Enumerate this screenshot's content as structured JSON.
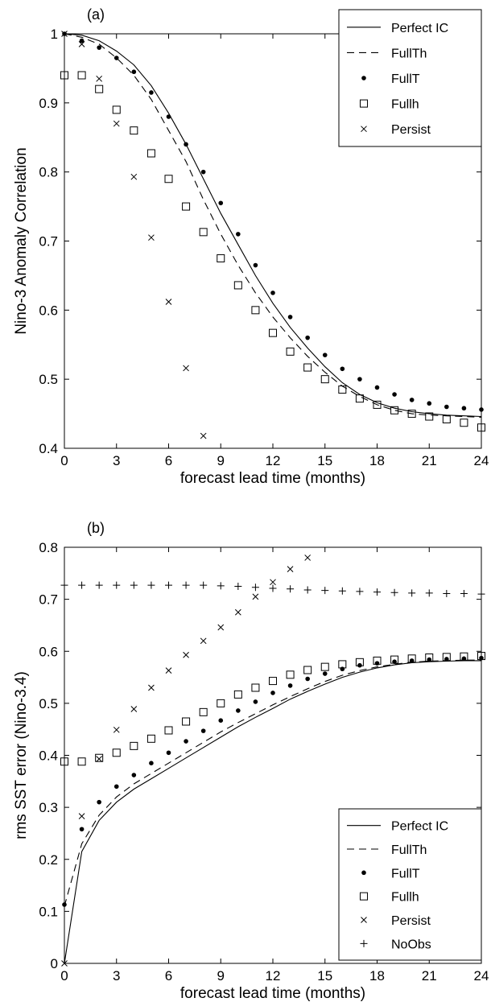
{
  "chart_data": [
    {
      "type": "line",
      "panel_label": "(a)",
      "xlabel": "forecast lead time (months)",
      "ylabel": "Nino-3 Anomaly Correlation",
      "xlim": [
        0,
        24
      ],
      "ylim": [
        0.4,
        1.0
      ],
      "xticks": [
        "0",
        "3",
        "6",
        "9",
        "12",
        "15",
        "18",
        "21",
        "24"
      ],
      "yticks": [
        "0.4",
        "0.5",
        "0.6",
        "0.7",
        "0.8",
        "0.9",
        "1"
      ],
      "grid": false,
      "legend_position": "top-right",
      "x": [
        0,
        1,
        2,
        3,
        4,
        5,
        6,
        7,
        8,
        9,
        10,
        11,
        12,
        13,
        14,
        15,
        16,
        17,
        18,
        19,
        20,
        21,
        22,
        23,
        24
      ],
      "series": [
        {
          "name": "Perfect IC",
          "style": "solid-line",
          "x": [
            0,
            1,
            2,
            3,
            4,
            5,
            6,
            7,
            8,
            9,
            10,
            11,
            12,
            13,
            14,
            15,
            16,
            17,
            18,
            19,
            20,
            21,
            22,
            23,
            24
          ],
          "values": [
            1.0,
            0.998,
            0.99,
            0.975,
            0.955,
            0.925,
            0.885,
            0.84,
            0.79,
            0.74,
            0.695,
            0.65,
            0.61,
            0.575,
            0.545,
            0.518,
            0.495,
            0.478,
            0.466,
            0.458,
            0.453,
            0.45,
            0.448,
            0.447,
            0.446
          ]
        },
        {
          "name": "FullTh",
          "style": "dashed-line",
          "x": [
            0,
            1,
            2,
            3,
            4,
            5,
            6,
            7,
            8,
            9,
            10,
            11,
            12,
            13,
            14,
            15,
            16,
            17,
            18,
            19,
            20,
            21,
            22,
            23,
            24
          ],
          "values": [
            1.0,
            0.995,
            0.985,
            0.965,
            0.94,
            0.905,
            0.86,
            0.815,
            0.76,
            0.71,
            0.665,
            0.625,
            0.59,
            0.56,
            0.533,
            0.51,
            0.49,
            0.475,
            0.463,
            0.455,
            0.45,
            0.448,
            0.447,
            0.446,
            0.445
          ]
        },
        {
          "name": "FullT",
          "style": "filled-dot",
          "x": [
            0,
            1,
            2,
            3,
            4,
            5,
            6,
            7,
            8,
            9,
            10,
            11,
            12,
            13,
            14,
            15,
            16,
            17,
            18,
            19,
            20,
            21,
            22,
            23,
            24
          ],
          "values": [
            1.0,
            0.99,
            0.98,
            0.965,
            0.945,
            0.915,
            0.88,
            0.84,
            0.8,
            0.755,
            0.71,
            0.665,
            0.625,
            0.59,
            0.56,
            0.535,
            0.515,
            0.5,
            0.488,
            0.478,
            0.47,
            0.465,
            0.46,
            0.458,
            0.456
          ]
        },
        {
          "name": "Fullh",
          "style": "open-square",
          "x": [
            0,
            1,
            2,
            3,
            4,
            5,
            6,
            7,
            8,
            9,
            10,
            11,
            12,
            13,
            14,
            15,
            16,
            17,
            18,
            19,
            20,
            21,
            22,
            23,
            24
          ],
          "values": [
            0.94,
            0.94,
            0.92,
            0.89,
            0.86,
            0.827,
            0.79,
            0.75,
            0.713,
            0.675,
            0.636,
            0.6,
            0.567,
            0.54,
            0.517,
            0.5,
            0.485,
            0.472,
            0.463,
            0.455,
            0.45,
            0.446,
            0.442,
            0.437,
            0.43
          ]
        },
        {
          "name": "Persist",
          "style": "x-marker",
          "x": [
            0,
            1,
            2,
            3,
            4,
            5,
            6,
            7,
            8
          ],
          "values": [
            1.0,
            0.985,
            0.935,
            0.87,
            0.793,
            0.705,
            0.612,
            0.516,
            0.418
          ]
        }
      ]
    },
    {
      "type": "line",
      "panel_label": "(b)",
      "xlabel": "forecast lead time (months)",
      "ylabel": "rms SST error (Nino-3.4)",
      "xlim": [
        0,
        24
      ],
      "ylim": [
        0,
        0.8
      ],
      "xticks": [
        "0",
        "3",
        "6",
        "9",
        "12",
        "15",
        "18",
        "21",
        "24"
      ],
      "yticks": [
        "0",
        "0.1",
        "0.2",
        "0.3",
        "0.4",
        "0.5",
        "0.6",
        "0.7",
        "0.8"
      ],
      "grid": false,
      "legend_position": "bottom-right",
      "series": [
        {
          "name": "Perfect IC",
          "style": "solid-line",
          "x": [
            0,
            1,
            2,
            3,
            4,
            5,
            6,
            7,
            8,
            9,
            10,
            11,
            12,
            13,
            14,
            15,
            16,
            17,
            18,
            19,
            20,
            21,
            22,
            23,
            24
          ],
          "values": [
            0.0,
            0.215,
            0.275,
            0.31,
            0.335,
            0.355,
            0.375,
            0.395,
            0.415,
            0.435,
            0.455,
            0.473,
            0.49,
            0.508,
            0.523,
            0.537,
            0.55,
            0.56,
            0.568,
            0.574,
            0.578,
            0.58,
            0.581,
            0.582,
            0.582
          ]
        },
        {
          "name": "FullTh",
          "style": "dashed-line",
          "x": [
            0,
            1,
            2,
            3,
            4,
            5,
            6,
            7,
            8,
            9,
            10,
            11,
            12,
            13,
            14,
            15,
            16,
            17,
            18,
            19,
            20,
            21,
            22,
            23,
            24
          ],
          "values": [
            0.11,
            0.23,
            0.285,
            0.32,
            0.345,
            0.365,
            0.385,
            0.405,
            0.425,
            0.445,
            0.463,
            0.48,
            0.497,
            0.513,
            0.528,
            0.542,
            0.554,
            0.563,
            0.57,
            0.575,
            0.579,
            0.581,
            0.582,
            0.583,
            0.583
          ]
        },
        {
          "name": "FullT",
          "style": "filled-dot",
          "x": [
            0,
            1,
            2,
            3,
            4,
            5,
            6,
            7,
            8,
            9,
            10,
            11,
            12,
            13,
            14,
            15,
            16,
            17,
            18,
            19,
            20,
            21,
            22,
            23,
            24
          ],
          "values": [
            0.113,
            0.258,
            0.31,
            0.34,
            0.362,
            0.385,
            0.405,
            0.427,
            0.447,
            0.467,
            0.486,
            0.503,
            0.52,
            0.534,
            0.547,
            0.557,
            0.566,
            0.573,
            0.577,
            0.58,
            0.582,
            0.584,
            0.585,
            0.586,
            0.587
          ]
        },
        {
          "name": "Fullh",
          "style": "open-square",
          "x": [
            0,
            1,
            2,
            3,
            4,
            5,
            6,
            7,
            8,
            9,
            10,
            11,
            12,
            13,
            14,
            15,
            16,
            17,
            18,
            19,
            20,
            21,
            22,
            23,
            24
          ],
          "values": [
            0.388,
            0.388,
            0.395,
            0.405,
            0.418,
            0.432,
            0.448,
            0.465,
            0.483,
            0.5,
            0.517,
            0.53,
            0.543,
            0.555,
            0.564,
            0.57,
            0.575,
            0.579,
            0.582,
            0.584,
            0.586,
            0.588,
            0.589,
            0.59,
            0.591
          ]
        },
        {
          "name": "Persist",
          "style": "x-marker",
          "x": [
            0,
            1,
            2,
            3,
            4,
            5,
            6,
            7,
            8,
            9,
            10,
            11,
            12,
            13,
            14
          ],
          "values": [
            0.0,
            0.283,
            0.393,
            0.449,
            0.489,
            0.53,
            0.563,
            0.593,
            0.62,
            0.646,
            0.675,
            0.705,
            0.733,
            0.758,
            0.78
          ]
        },
        {
          "name": "NoObs",
          "style": "plus-marker",
          "x": [
            0,
            1,
            2,
            3,
            4,
            5,
            6,
            7,
            8,
            9,
            10,
            11,
            12,
            13,
            14,
            15,
            16,
            17,
            18,
            19,
            20,
            21,
            22,
            23,
            24
          ],
          "values": [
            0.727,
            0.727,
            0.727,
            0.727,
            0.727,
            0.727,
            0.727,
            0.727,
            0.727,
            0.726,
            0.725,
            0.723,
            0.721,
            0.72,
            0.718,
            0.717,
            0.716,
            0.715,
            0.714,
            0.713,
            0.712,
            0.712,
            0.711,
            0.711,
            0.71
          ]
        }
      ]
    }
  ]
}
